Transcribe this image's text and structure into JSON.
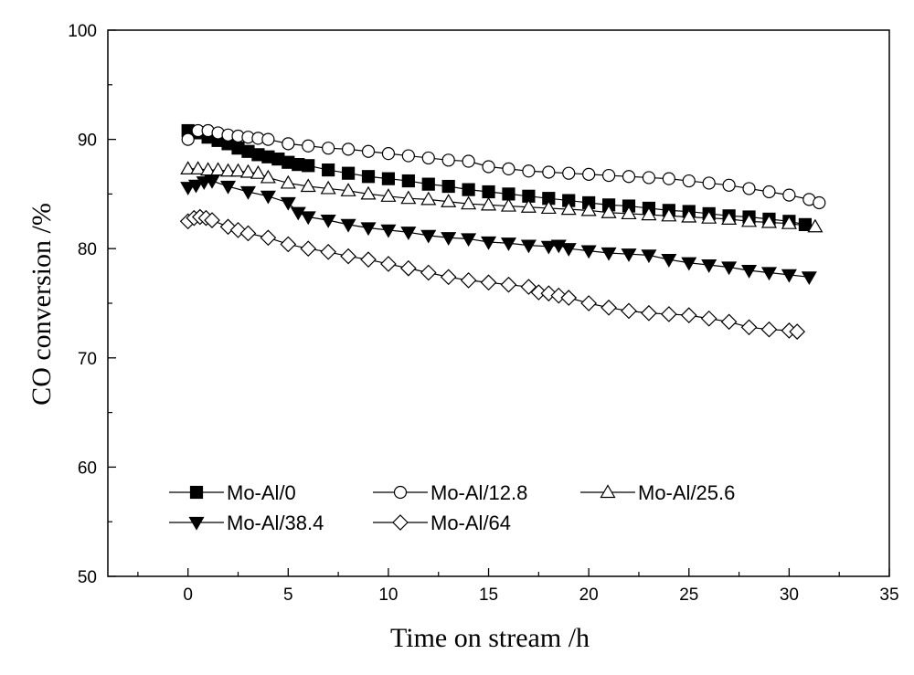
{
  "chart_data": {
    "type": "scatter",
    "title": "",
    "xlabel": "Time on stream /h",
    "ylabel": "CO conversion /%",
    "xlim": [
      -4,
      35
    ],
    "ylim": [
      50,
      100
    ],
    "xticks": [
      0,
      5,
      10,
      15,
      20,
      25,
      30,
      35
    ],
    "yticks": [
      50,
      60,
      70,
      80,
      90,
      100
    ],
    "grid": false,
    "legend_position": "bottom-left",
    "series": [
      {
        "name": "Mo-Al/0",
        "marker": "square-filled",
        "x": [
          0.0,
          0.5,
          1.0,
          1.5,
          2.0,
          2.5,
          3.0,
          3.5,
          4.0,
          4.5,
          5.0,
          5.5,
          6.0,
          7.0,
          8.0,
          9.0,
          10.0,
          11.0,
          12.0,
          13.0,
          14.0,
          15.0,
          16.0,
          17.0,
          18.0,
          19.0,
          20.0,
          21.0,
          22.0,
          23.0,
          24.0,
          25.0,
          26.0,
          27.0,
          28.0,
          29.0,
          30.0,
          30.8
        ],
        "y": [
          90.8,
          90.6,
          90.2,
          89.9,
          89.6,
          89.2,
          88.9,
          88.6,
          88.4,
          88.2,
          87.9,
          87.7,
          87.6,
          87.2,
          86.9,
          86.6,
          86.4,
          86.2,
          85.9,
          85.7,
          85.4,
          85.2,
          85.0,
          84.8,
          84.6,
          84.4,
          84.2,
          84.0,
          83.9,
          83.7,
          83.5,
          83.4,
          83.2,
          83.0,
          82.9,
          82.7,
          82.5,
          82.2
        ]
      },
      {
        "name": "Mo-Al/12.8",
        "marker": "circle-open",
        "x": [
          0.0,
          0.5,
          1.0,
          1.5,
          2.0,
          2.5,
          3.0,
          3.5,
          4.0,
          5.0,
          6.0,
          7.0,
          8.0,
          9.0,
          10.0,
          11.0,
          12.0,
          13.0,
          14.0,
          15.0,
          16.0,
          17.0,
          18.0,
          19.0,
          20.0,
          21.0,
          22.0,
          23.0,
          24.0,
          25.0,
          26.0,
          27.0,
          28.0,
          29.0,
          30.0,
          31.0,
          31.5
        ],
        "y": [
          90.0,
          90.8,
          90.8,
          90.6,
          90.4,
          90.3,
          90.2,
          90.1,
          90.0,
          89.6,
          89.4,
          89.2,
          89.1,
          88.9,
          88.7,
          88.5,
          88.3,
          88.1,
          88.0,
          87.5,
          87.3,
          87.1,
          87.0,
          86.9,
          86.8,
          86.7,
          86.6,
          86.5,
          86.4,
          86.2,
          86.0,
          85.8,
          85.5,
          85.2,
          84.9,
          84.5,
          84.2
        ]
      },
      {
        "name": "Mo-Al/25.6",
        "marker": "triangle-up-open",
        "x": [
          0.0,
          0.5,
          1.0,
          1.5,
          2.0,
          2.5,
          3.0,
          3.5,
          4.0,
          5.0,
          6.0,
          7.0,
          8.0,
          9.0,
          10.0,
          11.0,
          12.0,
          13.0,
          14.0,
          15.0,
          16.0,
          17.0,
          18.0,
          19.0,
          20.0,
          21.0,
          22.0,
          23.0,
          24.0,
          25.0,
          26.0,
          27.0,
          28.0,
          29.0,
          30.0,
          31.3
        ],
        "y": [
          87.3,
          87.3,
          87.2,
          87.2,
          87.1,
          87.1,
          87.0,
          86.9,
          86.5,
          86.0,
          85.7,
          85.5,
          85.3,
          85.0,
          84.8,
          84.6,
          84.5,
          84.3,
          84.1,
          84.0,
          83.9,
          83.8,
          83.7,
          83.6,
          83.5,
          83.3,
          83.2,
          83.1,
          83.0,
          82.9,
          82.8,
          82.7,
          82.5,
          82.4,
          82.3,
          82.0
        ]
      },
      {
        "name": "Mo-Al/38.4",
        "marker": "triangle-down-filled",
        "x": [
          0.0,
          0.4,
          0.8,
          1.2,
          2.0,
          3.0,
          4.0,
          5.0,
          5.5,
          6.0,
          7.0,
          8.0,
          9.0,
          10.0,
          11.0,
          12.0,
          13.0,
          14.0,
          15.0,
          16.0,
          17.0,
          18.0,
          18.5,
          19.0,
          20.0,
          21.0,
          22.0,
          23.0,
          24.0,
          25.0,
          26.0,
          27.0,
          28.0,
          29.0,
          30.0,
          31.0
        ],
        "y": [
          85.6,
          85.8,
          86.1,
          86.2,
          85.7,
          85.2,
          84.8,
          84.2,
          83.3,
          82.9,
          82.6,
          82.2,
          81.9,
          81.7,
          81.5,
          81.2,
          81.0,
          80.9,
          80.6,
          80.5,
          80.3,
          80.2,
          80.3,
          80.0,
          79.8,
          79.6,
          79.5,
          79.4,
          79.0,
          78.7,
          78.5,
          78.3,
          78.0,
          77.8,
          77.6,
          77.4
        ]
      },
      {
        "name": "Mo-Al/64",
        "marker": "diamond-open",
        "x": [
          0.0,
          0.3,
          0.6,
          0.9,
          1.2,
          2.0,
          2.5,
          3.0,
          4.0,
          5.0,
          6.0,
          7.0,
          8.0,
          9.0,
          10.0,
          11.0,
          12.0,
          13.0,
          14.0,
          15.0,
          16.0,
          17.0,
          17.5,
          18.0,
          18.5,
          19.0,
          20.0,
          21.0,
          22.0,
          23.0,
          24.0,
          25.0,
          26.0,
          27.0,
          28.0,
          29.0,
          30.0,
          30.4
        ],
        "y": [
          82.5,
          82.8,
          82.9,
          82.8,
          82.6,
          82.0,
          81.7,
          81.4,
          81.0,
          80.4,
          80.0,
          79.7,
          79.3,
          79.0,
          78.6,
          78.2,
          77.8,
          77.4,
          77.1,
          76.9,
          76.7,
          76.5,
          76.0,
          75.9,
          75.7,
          75.5,
          75.0,
          74.6,
          74.3,
          74.1,
          74.0,
          73.9,
          73.6,
          73.3,
          72.8,
          72.6,
          72.5,
          72.4
        ]
      }
    ]
  }
}
